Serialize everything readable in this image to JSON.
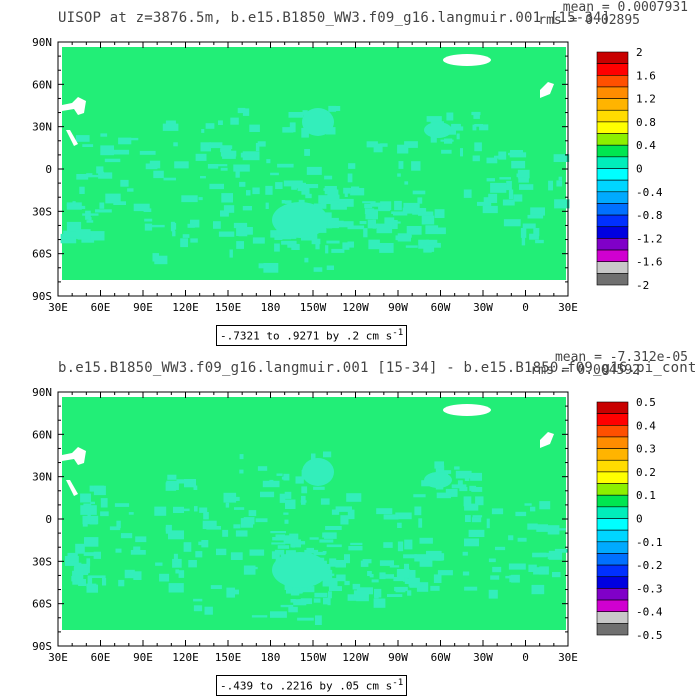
{
  "panels": [
    {
      "title": "UISOP at z=3876.5m, b.e15.B1850_WW3.f09_g16.langmuir.001 [15-34]",
      "mean": "mean = 0.0007931",
      "rms": "rms = 0.02895",
      "range_text": "-.7321 to .9271 by .2 cm s",
      "range_sup": "-1",
      "lat_labels": [
        "90N",
        "60N",
        "30N",
        "0",
        "30S",
        "60S",
        "90S"
      ],
      "lon_labels": [
        "30E",
        "60E",
        "90E",
        "120E",
        "150E",
        "180",
        "150W",
        "120W",
        "90W",
        "60W",
        "30W",
        "0",
        "30E"
      ],
      "colorbar": {
        "labels": [
          "2",
          "1.6",
          "1.2",
          "0.8",
          "0.4",
          "0",
          "-0.4",
          "-0.8",
          "-1.2",
          "-1.6",
          "-2"
        ],
        "colors": [
          "#c80000",
          "#ff0000",
          "#ff5000",
          "#ff8c00",
          "#ffb400",
          "#ffdc00",
          "#ffff00",
          "#8cf000",
          "#00e650",
          "#00eebb",
          "#00ffff",
          "#00d6ff",
          "#00aaff",
          "#0070ff",
          "#0030ff",
          "#0000e0",
          "#8000c8",
          "#d000d0",
          "#c8c8c8",
          "#707070"
        ]
      },
      "field_color": "#22ee77",
      "patch_color": "#33eebb"
    },
    {
      "title": "b.e15.B1850_WW3.f09_g16.langmuir.001 [15-34] - b.e15.B1850.f09_g16.pi_cont",
      "mean": "mean = -7.312e-05",
      "rms": "rms = 0.004592",
      "range_text": "-.439 to .2216 by .05 cm s",
      "range_sup": "-1",
      "lat_labels": [
        "90N",
        "60N",
        "30N",
        "0",
        "30S",
        "60S",
        "90S"
      ],
      "lon_labels": [
        "30E",
        "60E",
        "90E",
        "120E",
        "150E",
        "180",
        "150W",
        "120W",
        "90W",
        "60W",
        "30W",
        "0",
        "30E"
      ],
      "colorbar": {
        "labels": [
          "0.5",
          "0.4",
          "0.3",
          "0.2",
          "0.1",
          "0",
          "-0.1",
          "-0.2",
          "-0.3",
          "-0.4",
          "-0.5"
        ],
        "colors": [
          "#c80000",
          "#ff0000",
          "#ff5000",
          "#ff8c00",
          "#ffb400",
          "#ffdc00",
          "#ffff00",
          "#8cf000",
          "#00e650",
          "#00eebb",
          "#00ffff",
          "#00d6ff",
          "#00aaff",
          "#0070ff",
          "#0030ff",
          "#0000e0",
          "#8000c8",
          "#d000d0",
          "#c8c8c8",
          "#707070"
        ]
      },
      "field_color": "#22ee77",
      "patch_color": "#33eebb"
    }
  ]
}
